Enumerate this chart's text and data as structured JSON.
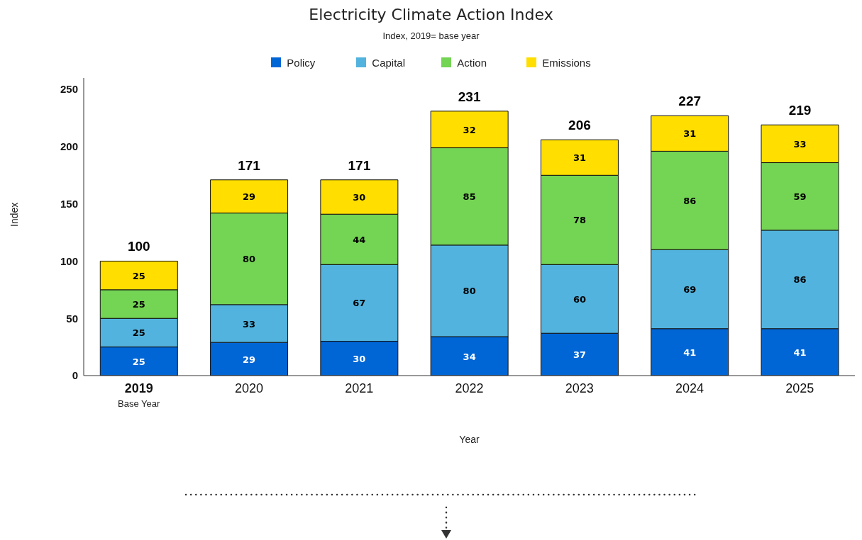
{
  "chart_data": {
    "type": "bar",
    "title": "Electricity Climate Action Index",
    "subtitle": "Index, 2019= base year",
    "xlabel": "Year",
    "ylabel": "Index",
    "categories": [
      "2019",
      "2020",
      "2021",
      "2022",
      "2023",
      "2024",
      "2025"
    ],
    "series": [
      {
        "name": "Policy",
        "color": "#0066d6",
        "values": [
          25,
          29,
          30,
          34,
          37,
          41,
          41
        ]
      },
      {
        "name": "Capital",
        "color": "#52b3de",
        "values": [
          25,
          33,
          67,
          80,
          60,
          69,
          86
        ]
      },
      {
        "name": "Action",
        "color": "#74d454",
        "values": [
          25,
          80,
          44,
          85,
          78,
          86,
          59
        ]
      },
      {
        "name": "Emissions",
        "color": "#ffde00",
        "values": [
          25,
          29,
          30,
          32,
          31,
          31,
          33
        ]
      }
    ],
    "stacked": true,
    "data_labels": true,
    "totals": [
      "100",
      "171",
      "171",
      "231",
      "206",
      "227",
      "219"
    ],
    "ylim": [
      0,
      260
    ],
    "yticks": [
      0,
      50,
      100,
      150,
      200,
      250
    ],
    "grid": false,
    "legend": "top",
    "annotations": [
      "Base Year"
    ]
  }
}
